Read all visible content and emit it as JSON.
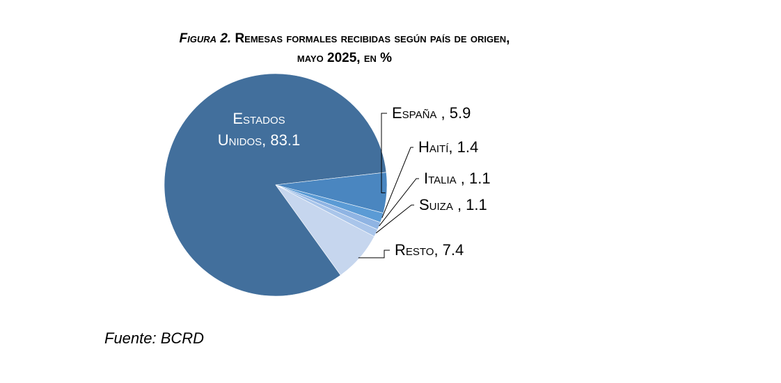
{
  "title": {
    "lead": "Figura 2.",
    "line1": "Remesas formales recibidas según país de origen,",
    "line2": "mayo 2025, en %"
  },
  "source": "Fuente: BCRD",
  "chart_data": {
    "type": "pie",
    "title": "Figura 2. Remesas formales recibidas según país de origen, mayo 2025, en %",
    "categories": [
      "Estados Unidos",
      "España",
      "Haití",
      "Italia",
      "Suiza",
      "Resto"
    ],
    "values": [
      83.1,
      5.9,
      1.4,
      1.1,
      1.1,
      7.4
    ],
    "labels": [
      "Estados Unidos, 83.1",
      "España , 5.9",
      "Haití, 1.4",
      "Italia , 1.1",
      "Suiza , 1.1",
      "Resto, 7.4"
    ],
    "colors": [
      "#426f9c",
      "#4a86c0",
      "#5b9bd5",
      "#8fb4e3",
      "#a9c5ea",
      "#c6d6ee"
    ],
    "legend": "none"
  }
}
